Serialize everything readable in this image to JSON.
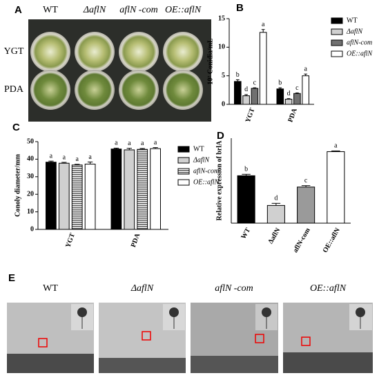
{
  "panels": {
    "a": "A",
    "b": "B",
    "c": "C",
    "d": "D",
    "e": "E"
  },
  "plates": {
    "columns": [
      "WT",
      "ΔaflN",
      "aflN -com",
      "OE::aflN"
    ],
    "rows": [
      "YGT",
      "PDA"
    ]
  },
  "microscopy": {
    "labels": [
      "WT",
      "ΔaflN",
      "aflN -com",
      "OE::aflN"
    ]
  },
  "chart_data": [
    {
      "type": "bar",
      "ylabel": "10⁷ Conidia/mL",
      "categories": [
        "YGT",
        "PDA"
      ],
      "ylim": [
        0,
        15
      ],
      "yticks": [
        0,
        5,
        10,
        15
      ],
      "series": [
        {
          "name": "WT",
          "color": "#000000",
          "values": [
            4.0,
            2.7
          ],
          "errors": [
            0.3,
            0.2
          ],
          "letters": [
            "b",
            "b"
          ]
        },
        {
          "name": "ΔaflN",
          "color": "#d0d0d0",
          "values": [
            1.5,
            0.9
          ],
          "errors": [
            0.2,
            0.1
          ],
          "letters": [
            "d",
            "d"
          ]
        },
        {
          "name": "aflN-com",
          "color": "#707070",
          "values": [
            2.8,
            1.9
          ],
          "errors": [
            0.1,
            0.1
          ],
          "letters": [
            "c",
            "c"
          ]
        },
        {
          "name": "OE::aflN",
          "color": "#ffffff",
          "values": [
            12.6,
            5.0
          ],
          "errors": [
            0.5,
            0.3
          ],
          "letters": [
            "a",
            "a"
          ]
        }
      ]
    },
    {
      "type": "bar",
      "ylabel": "Conoly diameter/mm",
      "categories": [
        "YGT",
        "PDA"
      ],
      "ylim": [
        0,
        50
      ],
      "yticks": [
        0,
        10,
        20,
        30,
        40,
        50
      ],
      "series": [
        {
          "name": "WT",
          "color": "#000000",
          "values": [
            38.3,
            45.8
          ],
          "errors": [
            0.6,
            0.5
          ],
          "letters": [
            "a",
            "a"
          ]
        },
        {
          "name": "ΔaflN",
          "color": "#d0d0d0",
          "values": [
            37.7,
            45.3
          ],
          "errors": [
            0.5,
            0.9
          ],
          "letters": [
            "a",
            "a"
          ]
        },
        {
          "name": "aflN-com",
          "color": "#8a8a8a",
          "hatch": "horizontal",
          "values": [
            36.7,
            45.6
          ],
          "errors": [
            0.4,
            0.5
          ],
          "letters": [
            "a",
            "a"
          ]
        },
        {
          "name": "OE::aflN",
          "color": "#ffffff",
          "values": [
            37.2,
            46.0
          ],
          "errors": [
            1.2,
            0.6
          ],
          "letters": [
            "a",
            "a"
          ]
        }
      ]
    },
    {
      "type": "bar",
      "ylabel": "Relative expression of brlA",
      "categories": [
        "WT",
        "ΔaflN",
        "aflN-com",
        "OE::aflN"
      ],
      "ylim": [
        0,
        120
      ],
      "colors": [
        "#000000",
        "#d0d0d0",
        "#9a9a9a",
        "#ffffff"
      ],
      "values": [
        67,
        25,
        51,
        101
      ],
      "errors": [
        2,
        3,
        2,
        1
      ],
      "letters": [
        "b",
        "d",
        "c",
        "a"
      ]
    }
  ]
}
